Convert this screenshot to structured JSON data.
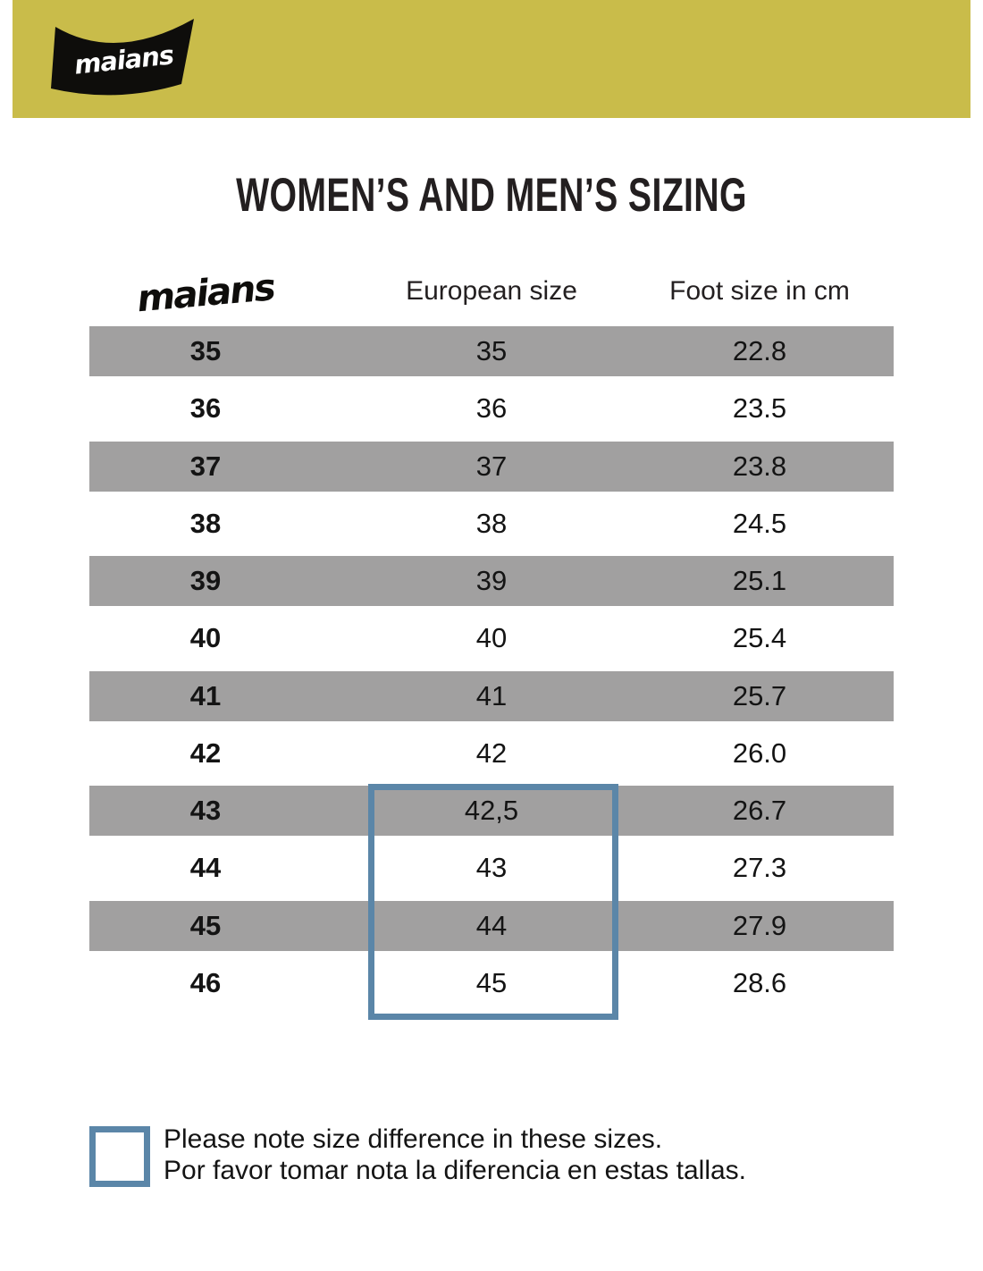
{
  "colors": {
    "band_yellow": "#c9bc4a",
    "row_gray": "#a1a0a0",
    "highlight_blue": "#5b86a8",
    "text_dark": "#231f20"
  },
  "header": {
    "logo_text": "maians"
  },
  "title": "WOMEN’S AND MEN’S SIZING",
  "table": {
    "logo_label": "maians",
    "columns": [
      {
        "label": "maians"
      },
      {
        "label": "European size"
      },
      {
        "label": "Foot size in cm"
      }
    ],
    "rows": [
      {
        "maians": "35",
        "eu": "35",
        "cm": "22.8",
        "shaded": true,
        "highlighted": false
      },
      {
        "maians": "36",
        "eu": "36",
        "cm": "23.5",
        "shaded": false,
        "highlighted": false
      },
      {
        "maians": "37",
        "eu": "37",
        "cm": "23.8",
        "shaded": true,
        "highlighted": false
      },
      {
        "maians": "38",
        "eu": "38",
        "cm": "24.5",
        "shaded": false,
        "highlighted": false
      },
      {
        "maians": "39",
        "eu": "39",
        "cm": "25.1",
        "shaded": true,
        "highlighted": false
      },
      {
        "maians": "40",
        "eu": "40",
        "cm": "25.4",
        "shaded": false,
        "highlighted": false
      },
      {
        "maians": "41",
        "eu": "41",
        "cm": "25.7",
        "shaded": true,
        "highlighted": false
      },
      {
        "maians": "42",
        "eu": "42",
        "cm": "26.0",
        "shaded": false,
        "highlighted": false
      },
      {
        "maians": "43",
        "eu": "42,5",
        "cm": "26.7",
        "shaded": true,
        "highlighted": true
      },
      {
        "maians": "44",
        "eu": "43",
        "cm": "27.3",
        "shaded": false,
        "highlighted": true
      },
      {
        "maians": "45",
        "eu": "44",
        "cm": "27.9",
        "shaded": true,
        "highlighted": true
      },
      {
        "maians": "46",
        "eu": "45",
        "cm": "28.6",
        "shaded": false,
        "highlighted": true
      }
    ]
  },
  "note": {
    "line1": "Please note size difference in these sizes.",
    "line2": "Por favor tomar nota la diferencia en estas tallas."
  },
  "chart_data": {
    "type": "table",
    "title": "WOMEN’S AND MEN’S SIZING",
    "columns": [
      "maians",
      "European size",
      "Foot size in cm"
    ],
    "rows": [
      [
        "35",
        "35",
        "22.8"
      ],
      [
        "36",
        "36",
        "23.5"
      ],
      [
        "37",
        "37",
        "23.8"
      ],
      [
        "38",
        "38",
        "24.5"
      ],
      [
        "39",
        "39",
        "25.1"
      ],
      [
        "40",
        "40",
        "25.4"
      ],
      [
        "41",
        "41",
        "25.7"
      ],
      [
        "42",
        "42",
        "26.0"
      ],
      [
        "43",
        "42,5",
        "26.7"
      ],
      [
        "44",
        "43",
        "27.3"
      ],
      [
        "45",
        "44",
        "27.9"
      ],
      [
        "46",
        "45",
        "28.6"
      ]
    ],
    "highlight": {
      "column": "European size",
      "maians_rows": [
        "43",
        "44",
        "45",
        "46"
      ],
      "note_en": "Please note size difference in these sizes.",
      "note_es": "Por favor tomar nota la diferencia en estas tallas."
    },
    "layout": {
      "alternating_row_shading": true,
      "shaded_rows_start": "35"
    }
  }
}
